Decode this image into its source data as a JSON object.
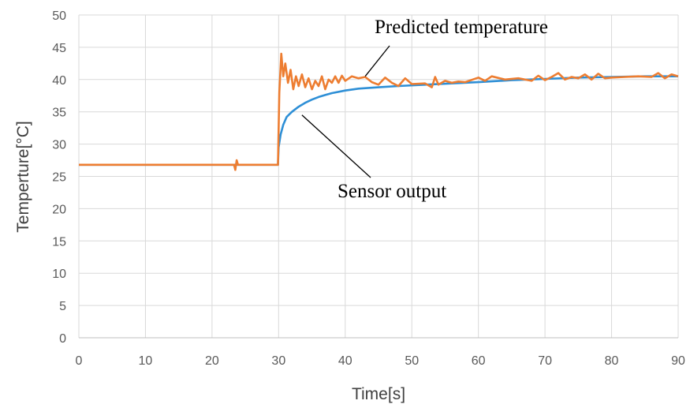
{
  "chart_data": {
    "type": "line",
    "xlabel": "Time[s]",
    "ylabel": "Temperture[°C]",
    "xlim": [
      0,
      90
    ],
    "ylim": [
      0,
      50
    ],
    "xticks": [
      0,
      10,
      20,
      30,
      40,
      50,
      60,
      70,
      80,
      90
    ],
    "yticks": [
      0,
      5,
      10,
      15,
      20,
      25,
      30,
      35,
      40,
      45,
      50
    ],
    "grid": true,
    "legend": "none",
    "series": [
      {
        "name": "Sensor output",
        "color": "#2e8fd6",
        "points": [
          [
            0,
            26.8
          ],
          [
            29.9,
            26.8
          ],
          [
            30.0,
            29.5
          ],
          [
            30.3,
            31.5
          ],
          [
            30.7,
            33.0
          ],
          [
            31.2,
            34.2
          ],
          [
            32.0,
            35.0
          ],
          [
            33.0,
            35.8
          ],
          [
            34.0,
            36.4
          ],
          [
            35.0,
            36.9
          ],
          [
            36.0,
            37.3
          ],
          [
            37.0,
            37.6
          ],
          [
            38.0,
            37.9
          ],
          [
            40.0,
            38.3
          ],
          [
            42.0,
            38.6
          ],
          [
            45.0,
            38.8
          ],
          [
            48.0,
            39.0
          ],
          [
            52.0,
            39.2
          ],
          [
            56.0,
            39.4
          ],
          [
            60.0,
            39.6
          ],
          [
            65.0,
            39.9
          ],
          [
            70.0,
            40.1
          ],
          [
            75.0,
            40.3
          ],
          [
            80.0,
            40.4
          ],
          [
            85.0,
            40.5
          ],
          [
            90.0,
            40.5
          ]
        ]
      },
      {
        "name": "Predicted temperature",
        "color": "#ed7d31",
        "points": [
          [
            0,
            26.8
          ],
          [
            23.3,
            26.8
          ],
          [
            23.5,
            26.0
          ],
          [
            23.7,
            27.5
          ],
          [
            23.9,
            26.8
          ],
          [
            29.9,
            26.8
          ],
          [
            30.1,
            38.0
          ],
          [
            30.4,
            44.0
          ],
          [
            30.7,
            40.5
          ],
          [
            31.0,
            42.5
          ],
          [
            31.4,
            39.5
          ],
          [
            31.8,
            41.5
          ],
          [
            32.2,
            38.5
          ],
          [
            32.6,
            40.5
          ],
          [
            33.0,
            39.0
          ],
          [
            33.5,
            40.8
          ],
          [
            34.0,
            38.8
          ],
          [
            34.5,
            40.2
          ],
          [
            35.0,
            38.5
          ],
          [
            35.5,
            39.8
          ],
          [
            36.0,
            39.0
          ],
          [
            36.5,
            40.5
          ],
          [
            37.0,
            38.5
          ],
          [
            37.5,
            40.0
          ],
          [
            38.0,
            39.5
          ],
          [
            38.5,
            40.5
          ],
          [
            39.0,
            39.5
          ],
          [
            39.5,
            40.6
          ],
          [
            40.0,
            39.8
          ],
          [
            41.0,
            40.5
          ],
          [
            42.0,
            40.2
          ],
          [
            43.0,
            40.4
          ],
          [
            44.0,
            39.6
          ],
          [
            45.0,
            39.2
          ],
          [
            46.0,
            40.3
          ],
          [
            47.0,
            39.5
          ],
          [
            48.0,
            39.0
          ],
          [
            49.0,
            40.2
          ],
          [
            50.0,
            39.3
          ],
          [
            52.0,
            39.4
          ],
          [
            53.0,
            38.8
          ],
          [
            53.5,
            40.4
          ],
          [
            54.0,
            39.2
          ],
          [
            55.0,
            39.8
          ],
          [
            56.0,
            39.5
          ],
          [
            57.0,
            39.7
          ],
          [
            58.0,
            39.6
          ],
          [
            60.0,
            40.3
          ],
          [
            61.0,
            39.8
          ],
          [
            62.0,
            40.5
          ],
          [
            64.0,
            40.0
          ],
          [
            66.0,
            40.2
          ],
          [
            68.0,
            39.8
          ],
          [
            69.0,
            40.6
          ],
          [
            70.0,
            39.9
          ],
          [
            71.0,
            40.4
          ],
          [
            72.0,
            41.0
          ],
          [
            73.0,
            40.0
          ],
          [
            74.0,
            40.4
          ],
          [
            75.0,
            40.2
          ],
          [
            76.0,
            40.8
          ],
          [
            77.0,
            40.0
          ],
          [
            78.0,
            40.9
          ],
          [
            79.0,
            40.2
          ],
          [
            80.0,
            40.3
          ],
          [
            82.0,
            40.4
          ],
          [
            84.0,
            40.5
          ],
          [
            86.0,
            40.4
          ],
          [
            87.0,
            41.0
          ],
          [
            88.0,
            40.2
          ],
          [
            89.0,
            40.8
          ],
          [
            90.0,
            40.5
          ]
        ]
      }
    ],
    "annotations": [
      {
        "text": "Predicted temperature",
        "target": [
          43.0,
          40.5
        ]
      },
      {
        "text": "Sensor output",
        "target": [
          33.5,
          34.5
        ]
      }
    ]
  }
}
